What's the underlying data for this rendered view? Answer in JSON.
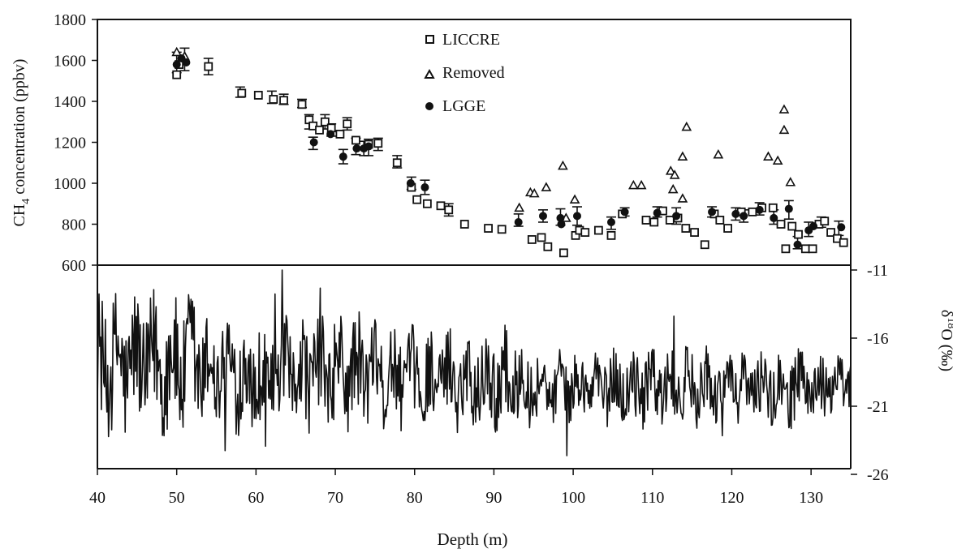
{
  "chart_data": [
    {
      "type": "scatter",
      "xlabel": "Depth (m)",
      "ylabel": "CH4 concentration (ppbv)",
      "xlim": [
        40,
        135
      ],
      "ylim": [
        600,
        1800
      ],
      "x_ticks": [
        "40",
        "50",
        "60",
        "70",
        "80",
        "90",
        "100",
        "110",
        "120",
        "130"
      ],
      "y_ticks": [
        "600",
        "800",
        "1000",
        "1200",
        "1400",
        "1600",
        "1800"
      ],
      "grid": false,
      "legend_position": "top-center",
      "series": [
        {
          "name": "LICCRE",
          "marker": "open-square",
          "color": "#111111",
          "points": [
            [
              50,
              1530
            ],
            [
              50.3,
              1580
            ],
            [
              54,
              1570
            ],
            [
              58.2,
              1440
            ],
            [
              60.3,
              1430
            ],
            [
              62.2,
              1410
            ],
            [
              63.5,
              1405
            ],
            [
              65.8,
              1385
            ],
            [
              66.7,
              1310
            ],
            [
              67.2,
              1280
            ],
            [
              68,
              1260
            ],
            [
              68.7,
              1300
            ],
            [
              69.5,
              1270
            ],
            [
              70.6,
              1240
            ],
            [
              71.5,
              1290
            ],
            [
              72.6,
              1210
            ],
            [
              74.2,
              1190
            ],
            [
              75.4,
              1195
            ],
            [
              77.8,
              1100
            ],
            [
              79.6,
              980
            ],
            [
              80.3,
              920
            ],
            [
              81.6,
              900
            ],
            [
              83.3,
              890
            ],
            [
              84.3,
              870
            ],
            [
              86.3,
              800
            ],
            [
              89.3,
              780
            ],
            [
              91,
              775
            ],
            [
              94.8,
              725
            ],
            [
              96,
              735
            ],
            [
              96.8,
              690
            ],
            [
              98.8,
              660
            ],
            [
              100.3,
              745
            ],
            [
              100.8,
              770
            ],
            [
              101.5,
              760
            ],
            [
              103.2,
              770
            ],
            [
              104.8,
              745
            ],
            [
              106.2,
              850
            ],
            [
              109.2,
              820
            ],
            [
              110.2,
              810
            ],
            [
              111.3,
              865
            ],
            [
              112.2,
              820
            ],
            [
              113.2,
              830
            ],
            [
              114.2,
              780
            ],
            [
              115.3,
              760
            ],
            [
              116.6,
              700
            ],
            [
              117.8,
              850
            ],
            [
              118.5,
              820
            ],
            [
              119.5,
              780
            ],
            [
              121.2,
              860
            ],
            [
              122.6,
              860
            ],
            [
              123.8,
              880
            ],
            [
              125.2,
              880
            ],
            [
              126.2,
              800
            ],
            [
              126.8,
              680
            ],
            [
              127.6,
              790
            ],
            [
              128.4,
              750
            ],
            [
              129.3,
              680
            ],
            [
              130.2,
              680
            ],
            [
              131,
              800
            ],
            [
              131.7,
              815
            ],
            [
              132.5,
              760
            ],
            [
              133.3,
              730
            ],
            [
              134.1,
              710
            ]
          ]
        },
        {
          "name": "Removed",
          "marker": "open-triangle",
          "color": "#111111",
          "points": [
            [
              50,
              1640
            ],
            [
              51,
              1620
            ],
            [
              93.2,
              880
            ],
            [
              94.6,
              955
            ],
            [
              95.1,
              950
            ],
            [
              96.6,
              980
            ],
            [
              98.7,
              1085
            ],
            [
              100.2,
              920
            ],
            [
              107.6,
              990
            ],
            [
              108.6,
              990
            ],
            [
              112.3,
              1060
            ],
            [
              112.8,
              1040
            ],
            [
              113.8,
              1130
            ],
            [
              114.3,
              1275
            ],
            [
              118.3,
              1140
            ],
            [
              124.6,
              1130
            ],
            [
              125.8,
              1110
            ],
            [
              126.6,
              1360
            ],
            [
              126.6,
              1260
            ],
            [
              127.4,
              1005
            ],
            [
              112.6,
              970
            ],
            [
              113.8,
              925
            ],
            [
              99.1,
              830
            ]
          ]
        },
        {
          "name": "LGGE",
          "marker": "filled-circle",
          "color": "#111111",
          "points": [
            [
              50,
              1580
            ],
            [
              50.6,
              1610
            ],
            [
              51.2,
              1590
            ],
            [
              67.3,
              1200
            ],
            [
              69.4,
              1240
            ],
            [
              71,
              1130
            ],
            [
              72.7,
              1170
            ],
            [
              73.6,
              1170
            ],
            [
              74.2,
              1180
            ],
            [
              79.5,
              1000
            ],
            [
              81.3,
              980
            ],
            [
              93.1,
              810
            ],
            [
              96.2,
              840
            ],
            [
              98.4,
              830
            ],
            [
              98.5,
              800
            ],
            [
              100.5,
              840
            ],
            [
              104.8,
              810
            ],
            [
              106.5,
              860
            ],
            [
              110.6,
              855
            ],
            [
              113,
              840
            ],
            [
              117.5,
              860
            ],
            [
              120.5,
              850
            ],
            [
              121.5,
              840
            ],
            [
              123.5,
              870
            ],
            [
              125.3,
              830
            ],
            [
              127.2,
              875
            ],
            [
              128.3,
              700
            ],
            [
              129.7,
              770
            ],
            [
              130.3,
              790
            ],
            [
              133.8,
              785
            ]
          ]
        }
      ],
      "error_bar_points": [
        [
          50,
          1590,
          50
        ],
        [
          51,
          1605,
          55
        ],
        [
          54,
          1570,
          40
        ],
        [
          58,
          1445,
          25
        ],
        [
          62,
          1420,
          30
        ],
        [
          63.5,
          1410,
          25
        ],
        [
          65.8,
          1390,
          20
        ],
        [
          66.7,
          1300,
          35
        ],
        [
          67.2,
          1195,
          30
        ],
        [
          68.7,
          1300,
          35
        ],
        [
          69.5,
          1260,
          30
        ],
        [
          71,
          1130,
          35
        ],
        [
          71.5,
          1290,
          30
        ],
        [
          72.6,
          1180,
          40
        ],
        [
          73.6,
          1170,
          35
        ],
        [
          74.2,
          1175,
          40
        ],
        [
          75.4,
          1190,
          30
        ],
        [
          77.8,
          1105,
          30
        ],
        [
          79.6,
          1000,
          30
        ],
        [
          81.3,
          980,
          35
        ],
        [
          84.3,
          870,
          30
        ],
        [
          93.1,
          820,
          30
        ],
        [
          96.2,
          840,
          30
        ],
        [
          98.4,
          835,
          40
        ],
        [
          100.5,
          840,
          45
        ],
        [
          104.8,
          805,
          30
        ],
        [
          106.5,
          860,
          20
        ],
        [
          110.6,
          860,
          25
        ],
        [
          113,
          840,
          40
        ],
        [
          117.5,
          860,
          25
        ],
        [
          120.5,
          850,
          30
        ],
        [
          121.5,
          840,
          30
        ],
        [
          123.5,
          875,
          30
        ],
        [
          125.3,
          835,
          35
        ],
        [
          127.2,
          870,
          45
        ],
        [
          128.3,
          710,
          30
        ],
        [
          129.7,
          775,
          35
        ],
        [
          131.3,
          810,
          25
        ],
        [
          133.5,
          780,
          35
        ]
      ]
    },
    {
      "type": "line",
      "xlabel": "Depth (m)",
      "ylabel": "δ18O (‰)",
      "ylabel_base": "δ",
      "ylabel_sup": "18",
      "ylabel_rest": "O (‰)",
      "ylim": [
        -26,
        -11
      ],
      "y_ticks": [
        "-11",
        "-16",
        "-21",
        "-26"
      ],
      "color": "#111111",
      "x_range": [
        40,
        135
      ],
      "sample_step": 0.1,
      "description_visible": "dense high-frequency isotope record oscillating roughly between -24 and -13; large spikes near 45–52 m and around 71 m; amplitude decreasing and centred near -19.5 below ~95 m"
    }
  ],
  "legend": {
    "liccre_label": "LICCRE",
    "removed_label": "Removed",
    "lgge_label": "LGGE"
  },
  "axes": {
    "xlabel": "Depth (m)",
    "ylabel_main_prefix": "CH",
    "ylabel_main_sub": "4",
    "ylabel_main_suffix": " concentration (ppbv)"
  }
}
